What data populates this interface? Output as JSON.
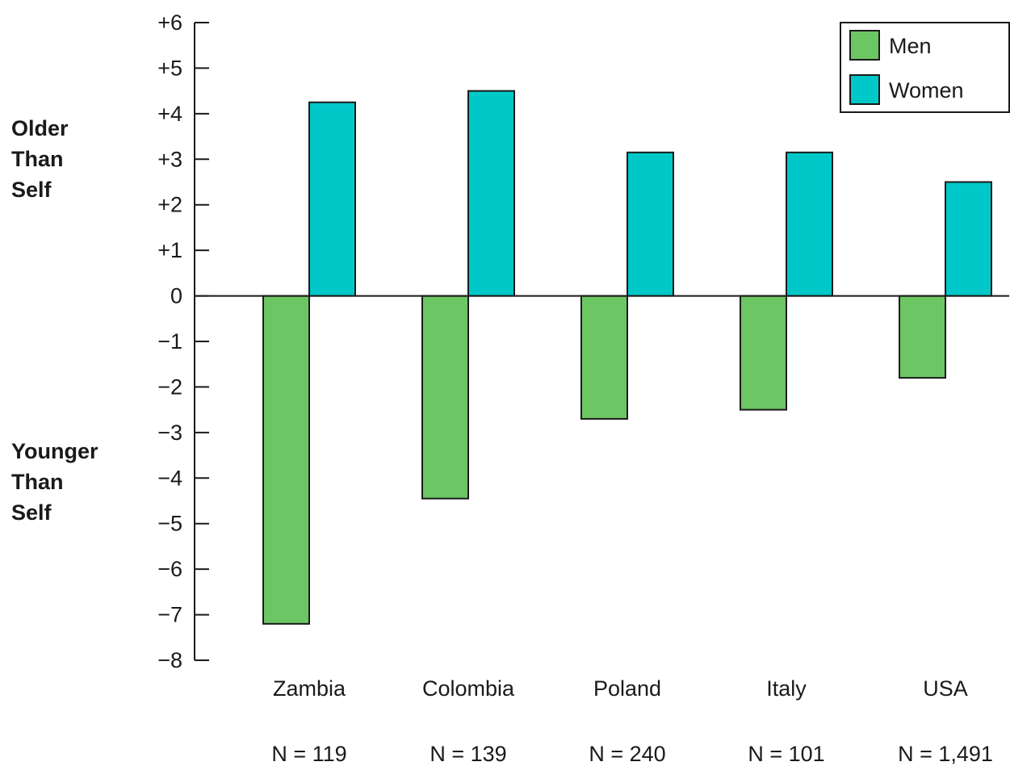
{
  "chart_data": {
    "type": "bar",
    "categories": [
      "Zambia",
      "Colombia",
      "Poland",
      "Italy",
      "USA"
    ],
    "sample_sizes": [
      "N = 119",
      "N = 139",
      "N = 240",
      "N = 101",
      "N = 1,491"
    ],
    "series": [
      {
        "name": "Men",
        "color": "#6cc664",
        "values": [
          -7.2,
          -4.45,
          -2.7,
          -2.5,
          -1.8
        ]
      },
      {
        "name": "Women",
        "color": "#00c8c8",
        "values": [
          4.25,
          4.5,
          3.15,
          3.15,
          2.5
        ]
      }
    ],
    "ylim": [
      -8,
      6
    ],
    "y_ticks": [
      {
        "value": 6,
        "label": "+6"
      },
      {
        "value": 5,
        "label": "+5"
      },
      {
        "value": 4,
        "label": "+4"
      },
      {
        "value": 3,
        "label": "+3"
      },
      {
        "value": 2,
        "label": "+2"
      },
      {
        "value": 1,
        "label": "+1"
      },
      {
        "value": 0,
        "label": "0"
      },
      {
        "value": -1,
        "label": "−1"
      },
      {
        "value": -2,
        "label": "−2"
      },
      {
        "value": -3,
        "label": "−3"
      },
      {
        "value": -4,
        "label": "−4"
      },
      {
        "value": -5,
        "label": "−5"
      },
      {
        "value": -6,
        "label": "−6"
      },
      {
        "value": -7,
        "label": "−7"
      },
      {
        "value": -8,
        "label": "−8"
      }
    ],
    "side_labels": {
      "older": [
        "Older",
        "Than",
        "Self"
      ],
      "younger": [
        "Younger",
        "Than",
        "Self"
      ]
    },
    "legend_position": "top-right",
    "grid": false
  }
}
